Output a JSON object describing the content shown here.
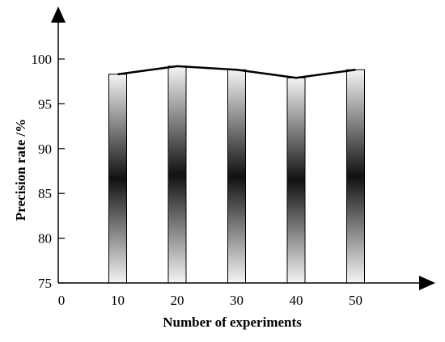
{
  "chart_data": {
    "type": "bar",
    "categories": [
      "10",
      "20",
      "30",
      "40",
      "50"
    ],
    "values": [
      98.3,
      99.2,
      98.8,
      97.9,
      98.8
    ],
    "line_values": [
      98.3,
      99.2,
      98.8,
      97.9,
      98.8
    ],
    "xlabel": "Number of experiments",
    "ylabel": "Precision rate /%",
    "ylim": [
      75,
      100
    ],
    "yticks": [
      "75",
      "80",
      "85",
      "90",
      "95",
      "100"
    ],
    "x_origin_label": "0",
    "grid": false,
    "legend": "none",
    "colors": {
      "bar_edge": "#000000",
      "bar_light": "#f2f2f2",
      "bar_dark": "#111111",
      "line": "#000000"
    }
  }
}
